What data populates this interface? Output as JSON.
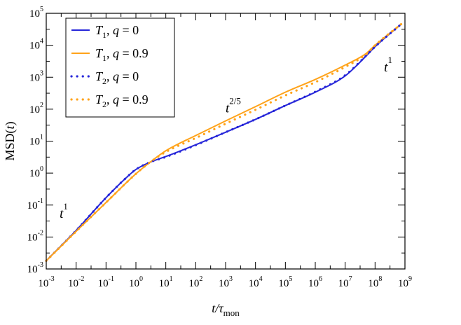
{
  "chart_data": {
    "type": "line",
    "xscale": "log",
    "yscale": "log",
    "xlim": [
      0.001,
      1000000000
    ],
    "ylim": [
      0.001,
      100000
    ],
    "xlabel": {
      "main": "t/τ",
      "sub": "mon"
    },
    "ylabel": {
      "main": "MSD(",
      "var": "t",
      "close": ")"
    },
    "xticks": [
      {
        "value": 0.001,
        "base": "10",
        "exp": "-3"
      },
      {
        "value": 0.01,
        "base": "10",
        "exp": "-2"
      },
      {
        "value": 0.1,
        "base": "10",
        "exp": "-1"
      },
      {
        "value": 1,
        "base": "10",
        "exp": "0"
      },
      {
        "value": 10,
        "base": "10",
        "exp": "1"
      },
      {
        "value": 100,
        "base": "10",
        "exp": "2"
      },
      {
        "value": 1000,
        "base": "10",
        "exp": "3"
      },
      {
        "value": 10000,
        "base": "10",
        "exp": "4"
      },
      {
        "value": 100000,
        "base": "10",
        "exp": "5"
      },
      {
        "value": 1000000,
        "base": "10",
        "exp": "6"
      },
      {
        "value": 10000000,
        "base": "10",
        "exp": "7"
      },
      {
        "value": 100000000,
        "base": "10",
        "exp": "8"
      },
      {
        "value": 1000000000,
        "base": "10",
        "exp": "9"
      }
    ],
    "yticks": [
      {
        "value": 0.001,
        "base": "10",
        "exp": "-3"
      },
      {
        "value": 0.01,
        "base": "10",
        "exp": "-2"
      },
      {
        "value": 0.1,
        "base": "10",
        "exp": "-1"
      },
      {
        "value": 1,
        "base": "10",
        "exp": "0"
      },
      {
        "value": 10,
        "base": "10",
        "exp": "1"
      },
      {
        "value": 100,
        "base": "10",
        "exp": "2"
      },
      {
        "value": 1000,
        "base": "10",
        "exp": "3"
      },
      {
        "value": 10000,
        "base": "10",
        "exp": "4"
      },
      {
        "value": 100000,
        "base": "10",
        "exp": "5"
      }
    ],
    "series": [
      {
        "name": {
          "T": "T",
          "sub": "1",
          "q": "q = 0"
        },
        "color": "#2626d9",
        "style": "solid",
        "x": [
          0.001,
          0.01,
          0.1,
          0.5,
          1,
          3,
          10,
          100,
          1000,
          10000,
          100000,
          1000000,
          10000000,
          50000000,
          100000000,
          750000000
        ],
        "y": [
          0.0018,
          0.016,
          0.17,
          0.75,
          1.3,
          2.2,
          3.3,
          7.7,
          19,
          48,
          130,
          340,
          1100,
          4600,
          9000,
          46000
        ]
      },
      {
        "name": {
          "T": "T",
          "sub": "1",
          "q": "q = 0.9"
        },
        "color": "#ffa31a",
        "style": "solid",
        "x": [
          0.001,
          0.01,
          0.1,
          1,
          3,
          10,
          100,
          1000,
          10000,
          100000,
          1000000,
          10000000,
          50000000,
          100000000,
          750000000
        ],
        "y": [
          0.0018,
          0.015,
          0.12,
          0.95,
          2.2,
          5,
          15,
          43,
          120,
          340,
          850,
          2400,
          5500,
          10000,
          46000
        ]
      },
      {
        "name": {
          "T": "T",
          "sub": "2",
          "q": "q = 0"
        },
        "color": "#2626d9",
        "style": "dotted",
        "x": [
          0.001,
          0.01,
          0.1,
          0.5,
          1,
          3,
          10,
          100,
          1000,
          10000,
          100000,
          1000000,
          10000000,
          50000000,
          100000000,
          750000000
        ],
        "y": [
          0.0018,
          0.016,
          0.17,
          0.75,
          1.3,
          2.2,
          3.2,
          7.5,
          19,
          48,
          130,
          350,
          1150,
          4700,
          9000,
          46000
        ]
      },
      {
        "name": {
          "T": "T",
          "sub": "2",
          "q": "q = 0.9"
        },
        "color": "#ffa31a",
        "style": "dotted",
        "x": [
          0.001,
          0.01,
          0.1,
          1,
          3,
          10,
          100,
          1000,
          10000,
          100000,
          1000000,
          10000000,
          50000000,
          100000000,
          750000000
        ],
        "y": [
          0.0018,
          0.015,
          0.12,
          0.95,
          2.2,
          4.6,
          12.5,
          35,
          96,
          270,
          700,
          2100,
          5200,
          10000,
          46000
        ]
      }
    ],
    "annotations": [
      {
        "base": "t",
        "exp": "1",
        "x": 0.0028,
        "y": 0.04
      },
      {
        "base": "t",
        "exp": "2/5",
        "x": 1000,
        "y": 80
      },
      {
        "base": "t",
        "exp": "1",
        "x": 200000000,
        "y": 1500
      }
    ],
    "legend": {
      "placement": "top-left"
    },
    "grid": false
  }
}
